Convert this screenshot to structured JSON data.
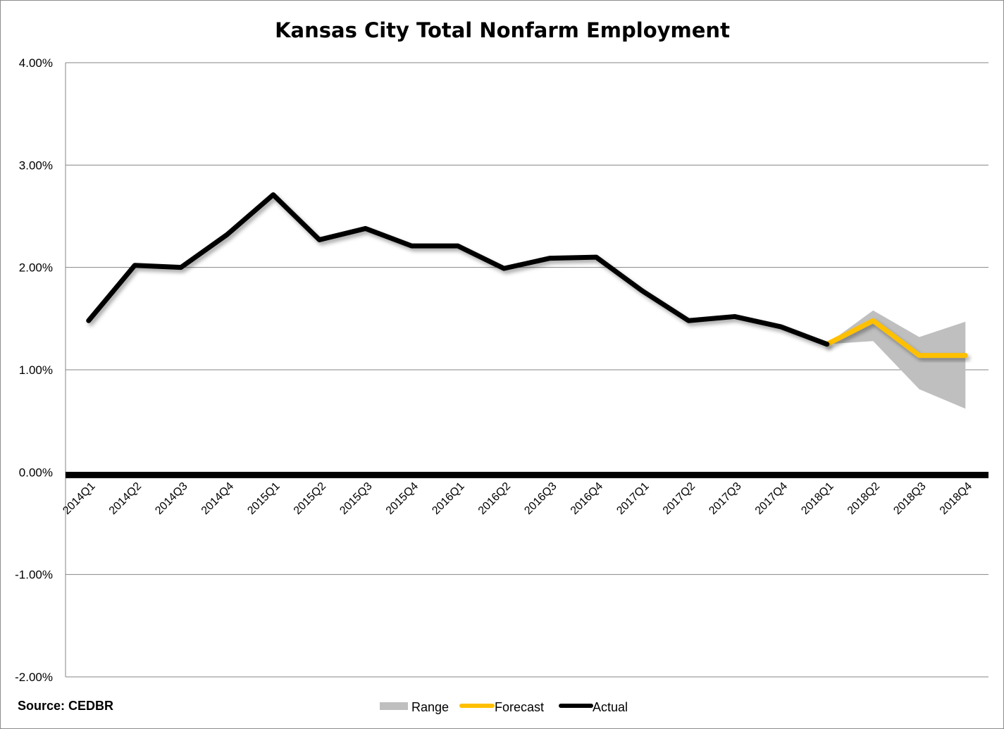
{
  "chart_data": {
    "type": "line",
    "title": "Kansas City Total Nonfarm Employment",
    "source": "Source: CEDBR",
    "xlabel": "",
    "ylabel": "",
    "ylim": [
      -0.02,
      0.04
    ],
    "y_ticks": [
      "4.00%",
      "3.00%",
      "2.00%",
      "1.00%",
      "0.00%",
      "-1.00%",
      "-2.00%"
    ],
    "y_tick_values": [
      0.04,
      0.03,
      0.02,
      0.01,
      0.0,
      -0.01,
      -0.02
    ],
    "grid": "horizontal",
    "legend_position": "bottom",
    "categories": [
      "2014Q1",
      "2014Q2",
      "2014Q3",
      "2014Q4",
      "2015Q1",
      "2015Q2",
      "2015Q3",
      "2015Q4",
      "2016Q1",
      "2016Q2",
      "2016Q3",
      "2016Q4",
      "2017Q1",
      "2017Q2",
      "2017Q3",
      "2017Q4",
      "2018Q1",
      "2018Q2",
      "2018Q3",
      "2018Q4"
    ],
    "series": [
      {
        "name": "Range",
        "type": "area",
        "color": "#bfbfbf",
        "lower": [
          null,
          null,
          null,
          null,
          null,
          null,
          null,
          null,
          null,
          null,
          null,
          null,
          null,
          null,
          null,
          null,
          0.0125,
          0.0128,
          0.0081,
          0.0062
        ],
        "upper": [
          null,
          null,
          null,
          null,
          null,
          null,
          null,
          null,
          null,
          null,
          null,
          null,
          null,
          null,
          null,
          null,
          0.0125,
          0.0158,
          0.0132,
          0.0147
        ]
      },
      {
        "name": "Forecast",
        "type": "line",
        "color": "#ffc000",
        "values": [
          null,
          null,
          null,
          null,
          null,
          null,
          null,
          null,
          null,
          null,
          null,
          null,
          null,
          null,
          null,
          null,
          0.0125,
          0.0148,
          0.0114,
          0.0114
        ]
      },
      {
        "name": "Actual",
        "type": "line",
        "color": "#000000",
        "values": [
          0.0148,
          0.0202,
          0.02,
          0.0232,
          0.0271,
          0.0227,
          0.0238,
          0.0221,
          0.0221,
          0.0199,
          0.0209,
          0.021,
          0.0177,
          0.0148,
          0.0152,
          0.0142,
          0.0125,
          null,
          null,
          null
        ]
      }
    ]
  }
}
